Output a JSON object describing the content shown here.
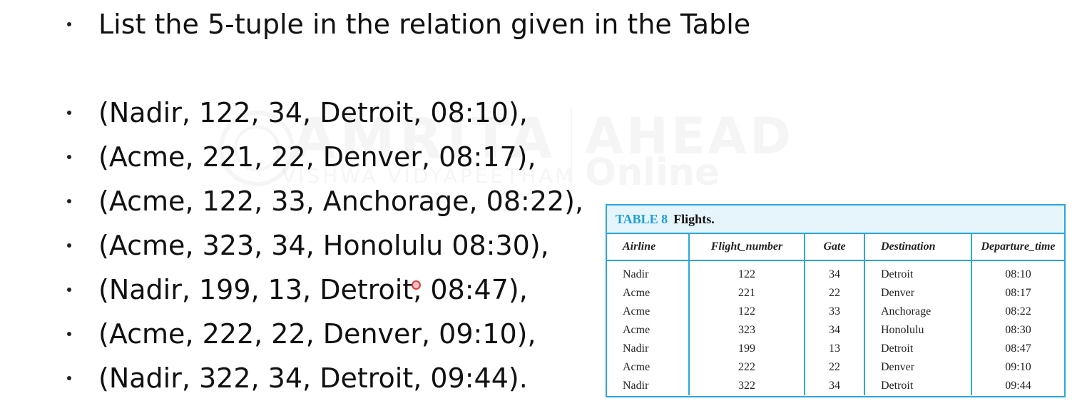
{
  "slide": {
    "heading": "List the 5-tuple in the relation given in the Table",
    "tuples": [
      "(Nadir, 122, 34, Detroit, 08:10),",
      "(Acme, 221, 22, Denver, 08:17),",
      "(Acme, 122, 33, Anchorage, 08:22),",
      "(Acme, 323, 34, Honolulu 08:30),",
      "(Nadir, 199, 13, Detroit, 08:47),",
      "(Acme, 222, 22, Denver, 09:10),",
      "(Nadir, 322, 34, Detroit, 09:44)."
    ]
  },
  "watermark": {
    "brand": "AMRITA",
    "sub": "VISHWA VIDYAPEETHAM",
    "ahead": "AHEAD",
    "online": "Online"
  },
  "table": {
    "caption_number": "TABLE 8",
    "caption_title": "Flights.",
    "headers": [
      "Airline",
      "Flight_number",
      "Gate",
      "Destination",
      "Departure_time"
    ],
    "rows": [
      [
        "Nadir",
        "122",
        "34",
        "Detroit",
        "08:10"
      ],
      [
        "Acme",
        "221",
        "22",
        "Denver",
        "08:17"
      ],
      [
        "Acme",
        "122",
        "33",
        "Anchorage",
        "08:22"
      ],
      [
        "Acme",
        "323",
        "34",
        "Honolulu",
        "08:30"
      ],
      [
        "Nadir",
        "199",
        "13",
        "Detroit",
        "08:47"
      ],
      [
        "Acme",
        "222",
        "22",
        "Denver",
        "09:10"
      ],
      [
        "Nadir",
        "322",
        "34",
        "Detroit",
        "09:44"
      ]
    ]
  },
  "colors": {
    "table_accent": "#2aa6df",
    "caption_background": "#e6f4fb",
    "caption_number": "#1c9fd8"
  }
}
